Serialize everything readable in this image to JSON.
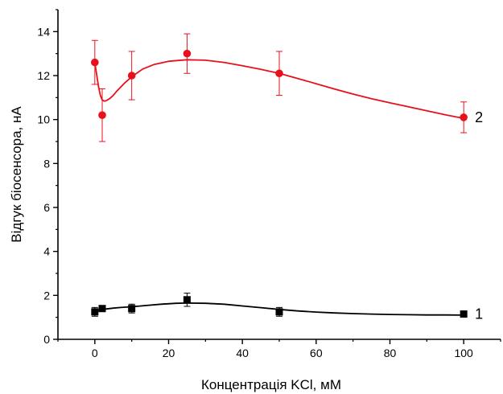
{
  "chart_data": {
    "type": "scatter",
    "title": "",
    "xlabel": "Концентрація KCl, мМ",
    "ylabel": "Відгук біосенсора, нА",
    "xlim": [
      -10,
      110
    ],
    "ylim": [
      0,
      15
    ],
    "xticks": [
      0,
      20,
      40,
      60,
      80,
      100
    ],
    "yticks": [
      0,
      2,
      4,
      6,
      8,
      10,
      12,
      14
    ],
    "grid": false,
    "series": [
      {
        "name": "1",
        "color": "#000000",
        "marker": "square",
        "x": [
          0,
          2,
          10,
          25,
          50,
          100
        ],
        "y": [
          1.25,
          1.4,
          1.4,
          1.8,
          1.25,
          1.15
        ],
        "yerr": [
          0.2,
          0.1,
          0.2,
          0.3,
          0.2,
          0.05
        ],
        "fit_x": [
          0,
          1,
          2,
          3,
          5,
          7,
          10,
          14,
          18,
          22,
          25,
          30,
          35,
          40,
          45,
          50,
          55,
          60,
          65,
          70,
          75,
          80,
          85,
          90,
          95,
          100
        ],
        "fit_y": [
          1.28,
          1.32,
          1.35,
          1.38,
          1.42,
          1.45,
          1.48,
          1.54,
          1.6,
          1.64,
          1.65,
          1.64,
          1.6,
          1.52,
          1.44,
          1.36,
          1.29,
          1.24,
          1.2,
          1.17,
          1.15,
          1.13,
          1.12,
          1.11,
          1.11,
          1.1
        ]
      },
      {
        "name": "2",
        "color": "#e8101a",
        "marker": "circle",
        "x": [
          0,
          2,
          10,
          25,
          50,
          100
        ],
        "y": [
          12.6,
          10.2,
          12.0,
          13.0,
          12.1,
          10.1
        ],
        "yerr": [
          1.0,
          1.2,
          1.1,
          0.9,
          1.0,
          0.7
        ],
        "fit_x": [
          0,
          0.5,
          1,
          1.5,
          2,
          2.5,
          3,
          4,
          5,
          6,
          8,
          10,
          13,
          16,
          20,
          25,
          30,
          35,
          40,
          45,
          50,
          55,
          60,
          65,
          70,
          75,
          80,
          85,
          90,
          95,
          100
        ],
        "fit_y": [
          12.6,
          12.05,
          11.5,
          11.1,
          10.9,
          10.84,
          10.85,
          10.95,
          11.1,
          11.3,
          11.65,
          11.95,
          12.3,
          12.5,
          12.65,
          12.72,
          12.7,
          12.6,
          12.45,
          12.28,
          12.1,
          11.87,
          11.63,
          11.39,
          11.16,
          10.95,
          10.76,
          10.58,
          10.4,
          10.22,
          10.05
        ]
      }
    ]
  }
}
